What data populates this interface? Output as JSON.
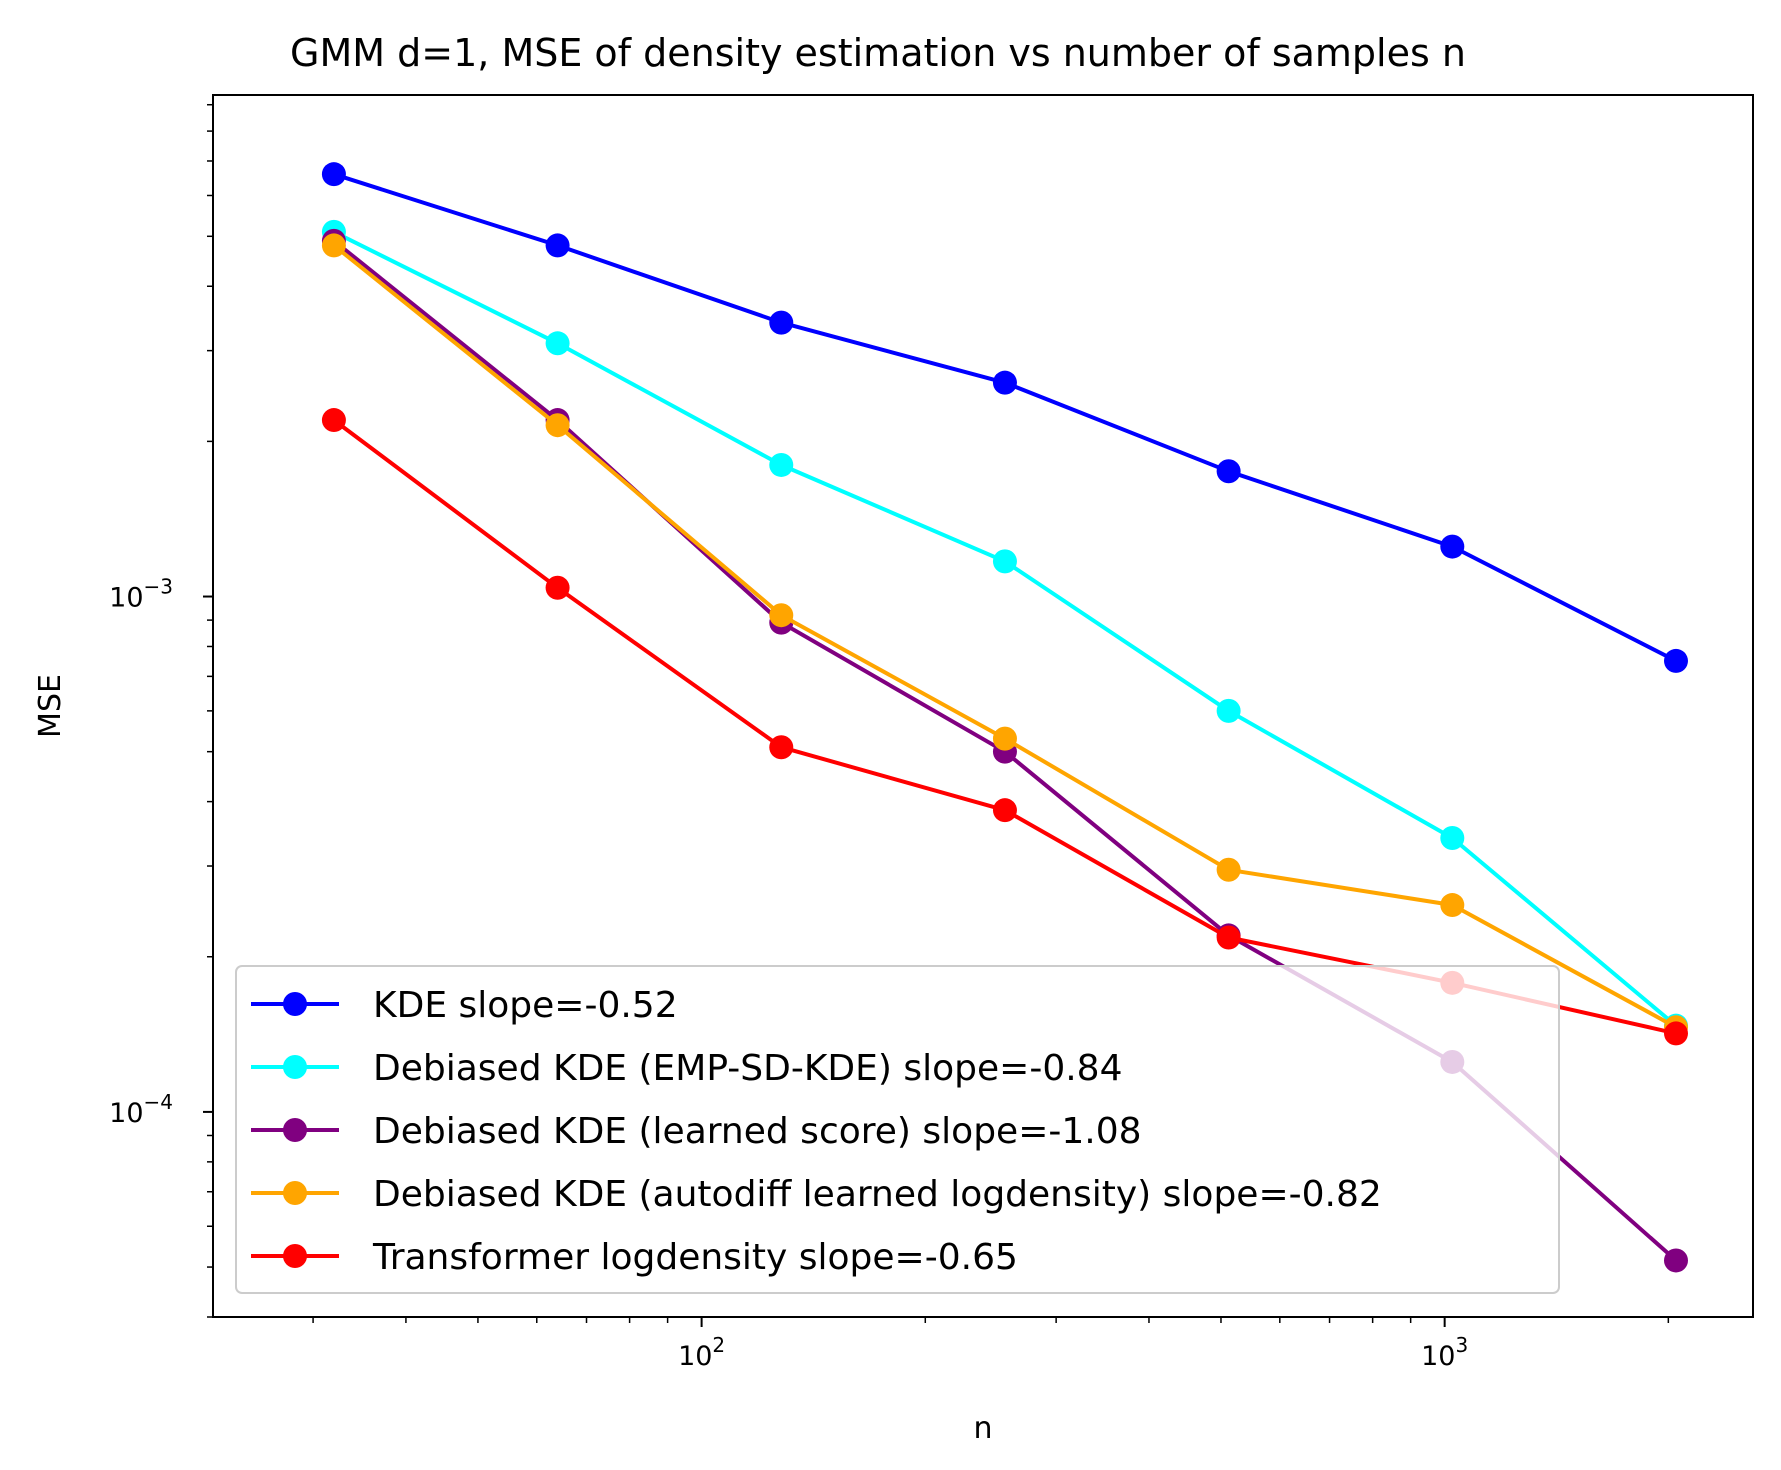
{
  "chart_data": {
    "type": "line",
    "title": "GMM d=1, MSE of density estimation vs number of samples n",
    "xlabel": "n",
    "ylabel": "MSE",
    "xscale": "log",
    "yscale": "log",
    "xlim": [
      22,
      2600
    ],
    "ylim": [
      4e-05,
      0.0094
    ],
    "x": [
      32,
      64,
      128,
      256,
      512,
      1024,
      2048
    ],
    "x_ticks": [
      {
        "value": 100,
        "base": "10",
        "exp": "2"
      },
      {
        "value": 1000,
        "base": "10",
        "exp": "3"
      }
    ],
    "y_ticks": [
      {
        "value": 0.001,
        "base": "10",
        "exp": "−3"
      },
      {
        "value": 0.0001,
        "base": "10",
        "exp": "−4"
      }
    ],
    "legend_position": "lower-left",
    "series": [
      {
        "name": "KDE slope=-0.52",
        "color": "#0000ff",
        "values": [
          0.0066,
          0.0048,
          0.0034,
          0.0026,
          0.00175,
          0.00125,
          0.00075
        ]
      },
      {
        "name": "Debiased KDE (EMP-SD-KDE) slope=-0.84",
        "color": "#00ffff",
        "values": [
          0.0051,
          0.0031,
          0.0018,
          0.00117,
          0.0006,
          0.00034,
          0.000147
        ]
      },
      {
        "name": "Debiased KDE (learned score) slope=-1.08",
        "color": "#800080",
        "values": [
          0.0049,
          0.0022,
          0.00089,
          0.0005,
          0.00022,
          0.000125,
          5.15e-05
        ]
      },
      {
        "name": "Debiased KDE (autodiff learned logdensity) slope=-0.82",
        "color": "#ffa500",
        "values": [
          0.0048,
          0.00215,
          0.00092,
          0.00053,
          0.000295,
          0.000252,
          0.000146
        ]
      },
      {
        "name": "Transformer logdensity slope=-0.65",
        "color": "#ff0000",
        "values": [
          0.0022,
          0.00104,
          0.00051,
          0.000385,
          0.000218,
          0.000178,
          0.000142
        ]
      }
    ]
  }
}
